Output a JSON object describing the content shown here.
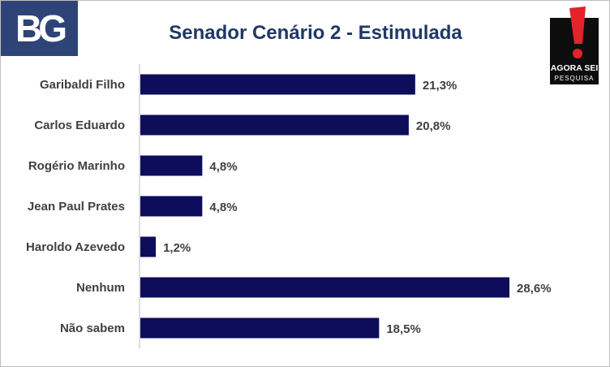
{
  "title": "Senador Cenário 2 - Estimulada",
  "logos": {
    "left": "BG",
    "right_line1": "AGORA SEI",
    "right_line2": "PESQUISA"
  },
  "colors": {
    "bar": "#0d0d5c",
    "title": "#1f3864",
    "logo_bg": "#2f4476",
    "logo_red": "#e3222b"
  },
  "chart_data": {
    "type": "bar",
    "orientation": "horizontal",
    "title": "Senador Cenário 2 - Estimulada",
    "categories": [
      "Garibaldi Filho",
      "Carlos Eduardo",
      "Rogério Marinho",
      "Jean Paul Prates",
      "Haroldo Azevedo",
      "Nenhum",
      "Não sabem"
    ],
    "values": [
      21.3,
      20.8,
      4.8,
      4.8,
      1.2,
      28.6,
      18.5
    ],
    "labels": [
      "21,3%",
      "20,8%",
      "4,8%",
      "4,8%",
      "1,2%",
      "28,6%",
      "18,5%"
    ],
    "unit": "%",
    "xlim": [
      0,
      28.6
    ],
    "grid": false,
    "legend": "none"
  }
}
